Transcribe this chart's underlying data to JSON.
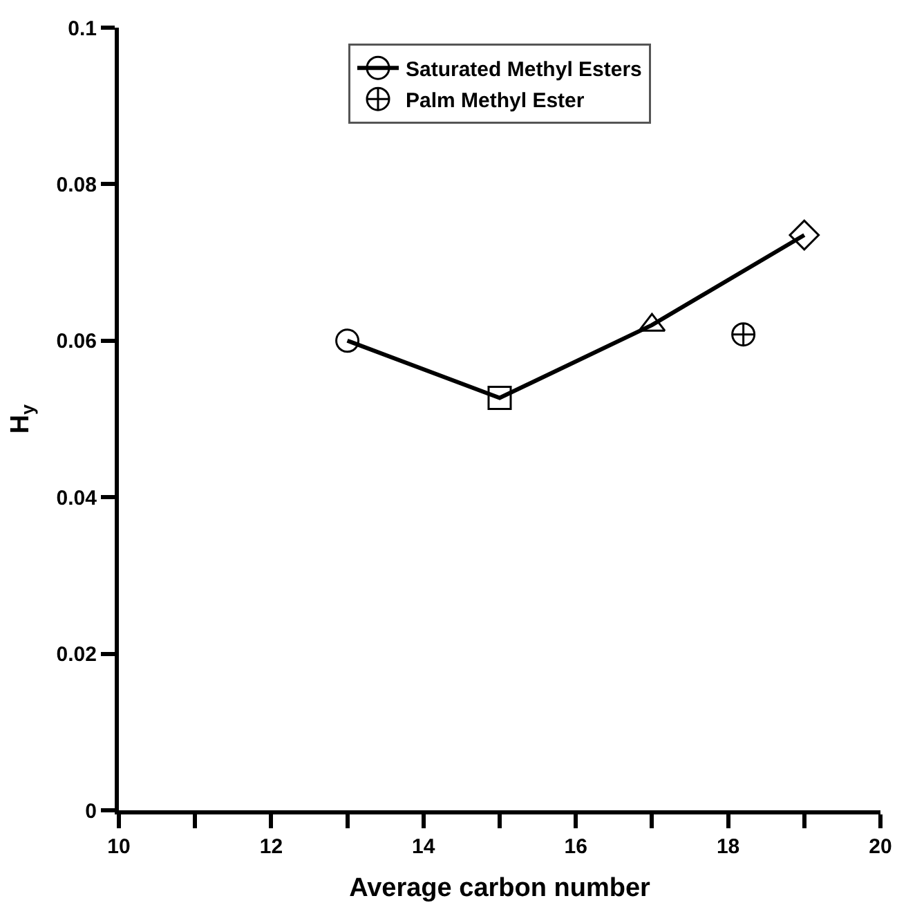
{
  "chart_data": {
    "type": "line",
    "xlabel": "Average carbon number",
    "ylabel": "H$_{y}$",
    "xlim": [
      10,
      20
    ],
    "xticks": [
      10,
      {
        "value": 11,
        "label": null
      },
      12,
      {
        "value": 13,
        "label": null
      },
      14,
      {
        "value": 15,
        "label": null
      },
      16,
      {
        "value": 17,
        "label": null
      },
      18,
      {
        "value": 19,
        "label": null
      },
      20
    ],
    "ylim": [
      0,
      0.1
    ],
    "yticks": [
      0,
      0.02,
      0.04,
      0.06,
      0.08,
      0.1
    ],
    "legend": "top",
    "series": [
      {
        "name": "Saturated Methyl Esters",
        "color": "#000000",
        "x": [
          13,
          15,
          17,
          19
        ],
        "values": [
          0.06,
          0.0527,
          0.062,
          0.0735
        ],
        "marker": [
          "circle",
          "square",
          "triangle",
          "diamond"
        ],
        "line_style": "solid"
      },
      {
        "name": "Palm Methyl Ester",
        "type": "scatter",
        "color": "#000000",
        "x": [
          18.2
        ],
        "values": [
          0.0608
        ],
        "marker": "cross"
      }
    ]
  }
}
